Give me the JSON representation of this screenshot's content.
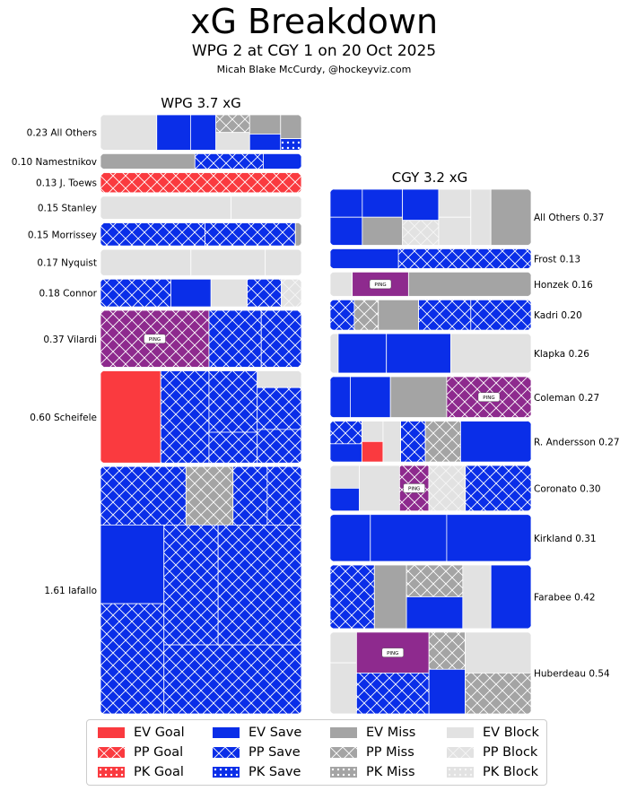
{
  "header": {
    "title": "xG Breakdown",
    "subtitle": "WPG 2 at CGY 1 on 20 Oct 2025",
    "credit": "Micah Blake McCurdy, @hockeyviz.com"
  },
  "colors": {
    "goal": "#fa3a3f",
    "save": "#0a2ee8",
    "miss": "#a4a4a4",
    "block": "#e2e2e2",
    "ping": "#8e2a8e",
    "pattern_line": "#ffffff"
  },
  "legend": {
    "items": [
      {
        "label": "EV Goal",
        "kind": "goal",
        "situation": "EV"
      },
      {
        "label": "PP Goal",
        "kind": "goal",
        "situation": "PP"
      },
      {
        "label": "PK Goal",
        "kind": "goal",
        "situation": "PK"
      },
      {
        "label": "EV Save",
        "kind": "save",
        "situation": "EV"
      },
      {
        "label": "PP Save",
        "kind": "save",
        "situation": "PP"
      },
      {
        "label": "PK Save",
        "kind": "save",
        "situation": "PK"
      },
      {
        "label": "EV Miss",
        "kind": "miss",
        "situation": "EV"
      },
      {
        "label": "PP Miss",
        "kind": "miss",
        "situation": "PP"
      },
      {
        "label": "PK Miss",
        "kind": "miss",
        "situation": "PK"
      },
      {
        "label": "EV Block",
        "kind": "block",
        "situation": "EV"
      },
      {
        "label": "PP Block",
        "kind": "block",
        "situation": "PP"
      },
      {
        "label": "PK Block",
        "kind": "block",
        "situation": "PK"
      }
    ]
  },
  "chart_data": {
    "type": "treemap",
    "ping_label": "PING",
    "teams": [
      {
        "title": "WPG 3.7 xG",
        "side": "left",
        "players": [
          {
            "label": "0.23 All Others",
            "xg": 0.23,
            "shots": [
              {
                "kind": "block",
                "sit": "EV",
                "w": 1.0
              },
              {
                "kind": "save",
                "sit": "EV",
                "w": 0.6
              },
              {
                "kind": "save",
                "sit": "EV",
                "w": 0.45
              },
              {
                "kind": "miss",
                "sit": "PP",
                "w": 0.3
              },
              {
                "kind": "block",
                "sit": "EV",
                "w": 0.3
              },
              {
                "kind": "miss",
                "sit": "EV",
                "w": 0.3
              },
              {
                "kind": "save",
                "sit": "EV",
                "w": 0.25
              },
              {
                "kind": "miss",
                "sit": "EV",
                "w": 0.25
              },
              {
                "kind": "save",
                "sit": "PK",
                "w": 0.12
              }
            ]
          },
          {
            "label": "0.10 Namestnikov",
            "xg": 0.1,
            "shots": [
              {
                "kind": "miss",
                "sit": "EV",
                "w": 0.47
              },
              {
                "kind": "save",
                "sit": "PP",
                "w": 0.34
              },
              {
                "kind": "save",
                "sit": "EV",
                "w": 0.19
              }
            ]
          },
          {
            "label": "0.13 J. Toews",
            "xg": 0.13,
            "shots": [
              {
                "kind": "goal",
                "sit": "PP",
                "w": 1.0
              }
            ]
          },
          {
            "label": "0.15 Stanley",
            "xg": 0.15,
            "shots": [
              {
                "kind": "block",
                "sit": "EV",
                "w": 0.65
              },
              {
                "kind": "block",
                "sit": "EV",
                "w": 0.35
              }
            ]
          },
          {
            "label": "0.15 Morrissey",
            "xg": 0.15,
            "shots": [
              {
                "kind": "save",
                "sit": "PP",
                "w": 0.52
              },
              {
                "kind": "save",
                "sit": "PP",
                "w": 0.45
              },
              {
                "kind": "miss",
                "sit": "EV",
                "w": 0.03
              }
            ]
          },
          {
            "label": "0.17 Nyquist",
            "xg": 0.17,
            "shots": [
              {
                "kind": "block",
                "sit": "EV",
                "w": 0.45
              },
              {
                "kind": "block",
                "sit": "EV",
                "w": 0.37
              },
              {
                "kind": "block",
                "sit": "EV",
                "w": 0.18
              }
            ]
          },
          {
            "label": "0.18 Connor",
            "xg": 0.18,
            "shots": [
              {
                "kind": "save",
                "sit": "PP",
                "w": 0.35
              },
              {
                "kind": "save",
                "sit": "EV",
                "w": 0.2
              },
              {
                "kind": "block",
                "sit": "EV",
                "w": 0.18
              },
              {
                "kind": "save",
                "sit": "PP",
                "w": 0.17
              },
              {
                "kind": "block",
                "sit": "PP",
                "w": 0.1
              }
            ]
          },
          {
            "label": "0.37 Vilardi",
            "xg": 0.37,
            "shots": [
              {
                "kind": "ping",
                "sit": "PP",
                "w": 0.54
              },
              {
                "kind": "save",
                "sit": "PP",
                "w": 0.26
              },
              {
                "kind": "save",
                "sit": "PP",
                "w": 0.2
              }
            ]
          },
          {
            "label": "0.60 Scheifele",
            "xg": 0.6,
            "shots": [
              {
                "kind": "goal",
                "sit": "EV",
                "w": 0.3
              },
              {
                "kind": "save",
                "sit": "PP",
                "w": 0.24
              },
              {
                "kind": "save",
                "sit": "PP",
                "w": 0.16
              },
              {
                "kind": "save",
                "sit": "PP",
                "w": 0.08
              },
              {
                "kind": "block",
                "sit": "EV",
                "w": 0.04
              },
              {
                "kind": "save",
                "sit": "PP",
                "w": 0.1
              },
              {
                "kind": "save",
                "sit": "PP",
                "w": 0.08
              }
            ]
          },
          {
            "label": "1.61 Iafallo",
            "xg": 1.61,
            "shots": [
              {
                "kind": "save",
                "sit": "PP",
                "w": 0.1
              },
              {
                "kind": "miss",
                "sit": "PP",
                "w": 0.055
              },
              {
                "kind": "save",
                "sit": "PP",
                "w": 0.04
              },
              {
                "kind": "save",
                "sit": "PP",
                "w": 0.04
              },
              {
                "kind": "save",
                "sit": "EV",
                "w": 0.1
              },
              {
                "kind": "save",
                "sit": "PP",
                "w": 0.14
              },
              {
                "kind": "save",
                "sit": "PP",
                "w": 0.13
              },
              {
                "kind": "save",
                "sit": "PP",
                "w": 0.2
              },
              {
                "kind": "save",
                "sit": "PP",
                "w": 0.19
              }
            ]
          }
        ]
      },
      {
        "title": "CGY 3.2 xG",
        "side": "right",
        "players": [
          {
            "label": "All Others 0.37",
            "xg": 0.37,
            "shots": [
              {
                "kind": "save",
                "sit": "EV",
                "w": 0.08
              },
              {
                "kind": "save",
                "sit": "EV",
                "w": 0.08
              },
              {
                "kind": "save",
                "sit": "EV",
                "w": 0.1
              },
              {
                "kind": "miss",
                "sit": "EV",
                "w": 0.1
              },
              {
                "kind": "save",
                "sit": "EV",
                "w": 0.1
              },
              {
                "kind": "block",
                "sit": "PP",
                "w": 0.08
              },
              {
                "kind": "block",
                "sit": "EV",
                "w": 0.08
              },
              {
                "kind": "block",
                "sit": "EV",
                "w": 0.08
              },
              {
                "kind": "block",
                "sit": "EV",
                "w": 0.1
              },
              {
                "kind": "miss",
                "sit": "EV",
                "w": 0.2
              }
            ]
          },
          {
            "label": "Frost 0.13",
            "xg": 0.13,
            "shots": [
              {
                "kind": "save",
                "sit": "EV",
                "w": 0.34
              },
              {
                "kind": "save",
                "sit": "PP",
                "w": 0.66
              }
            ]
          },
          {
            "label": "Honzek 0.16",
            "xg": 0.16,
            "shots": [
              {
                "kind": "block",
                "sit": "EV",
                "w": 0.11
              },
              {
                "kind": "ping",
                "sit": "EV",
                "w": 0.28
              },
              {
                "kind": "miss",
                "sit": "EV",
                "w": 0.61
              }
            ]
          },
          {
            "label": "Kadri 0.20",
            "xg": 0.2,
            "shots": [
              {
                "kind": "save",
                "sit": "PP",
                "w": 0.12
              },
              {
                "kind": "miss",
                "sit": "PP",
                "w": 0.12
              },
              {
                "kind": "miss",
                "sit": "EV",
                "w": 0.2
              },
              {
                "kind": "save",
                "sit": "PP",
                "w": 0.26
              },
              {
                "kind": "save",
                "sit": "PP",
                "w": 0.3
              }
            ]
          },
          {
            "label": "Klapka 0.26",
            "xg": 0.26,
            "shots": [
              {
                "kind": "block",
                "sit": "EV",
                "w": 0.04
              },
              {
                "kind": "save",
                "sit": "EV",
                "w": 0.24
              },
              {
                "kind": "save",
                "sit": "EV",
                "w": 0.32
              },
              {
                "kind": "block",
                "sit": "EV",
                "w": 0.4
              }
            ]
          },
          {
            "label": "Coleman 0.27",
            "xg": 0.27,
            "shots": [
              {
                "kind": "save",
                "sit": "EV",
                "w": 0.1
              },
              {
                "kind": "save",
                "sit": "EV",
                "w": 0.2
              },
              {
                "kind": "miss",
                "sit": "EV",
                "w": 0.28
              },
              {
                "kind": "ping",
                "sit": "PP",
                "w": 0.42
              }
            ]
          },
          {
            "label": "R. Andersson 0.27",
            "xg": 0.27,
            "shots": [
              {
                "kind": "save",
                "sit": "PP",
                "w": 0.1
              },
              {
                "kind": "save",
                "sit": "EV",
                "w": 0.08
              },
              {
                "kind": "block",
                "sit": "EV",
                "w": 0.06
              },
              {
                "kind": "goal",
                "sit": "EV",
                "w": 0.06
              },
              {
                "kind": "block",
                "sit": "EV",
                "w": 0.1
              },
              {
                "kind": "save",
                "sit": "PP",
                "w": 0.14
              },
              {
                "kind": "miss",
                "sit": "PP",
                "w": 0.2
              },
              {
                "kind": "save",
                "sit": "EV",
                "w": 0.4
              }
            ]
          },
          {
            "label": "Coronato 0.30",
            "xg": 0.3,
            "shots": [
              {
                "kind": "block",
                "sit": "EV",
                "w": 0.08
              },
              {
                "kind": "save",
                "sit": "EV",
                "w": 0.08
              },
              {
                "kind": "block",
                "sit": "EV",
                "w": 0.22
              },
              {
                "kind": "ping",
                "sit": "PP",
                "w": 0.16
              },
              {
                "kind": "block",
                "sit": "PP",
                "w": 0.2
              },
              {
                "kind": "save",
                "sit": "PP",
                "w": 0.36
              }
            ]
          },
          {
            "label": "Kirkland 0.31",
            "xg": 0.31,
            "shots": [
              {
                "kind": "save",
                "sit": "EV",
                "w": 0.2
              },
              {
                "kind": "save",
                "sit": "EV",
                "w": 0.38
              },
              {
                "kind": "save",
                "sit": "EV",
                "w": 0.42
              }
            ]
          },
          {
            "label": "Farabee 0.42",
            "xg": 0.42,
            "shots": [
              {
                "kind": "save",
                "sit": "PP",
                "w": 0.22
              },
              {
                "kind": "miss",
                "sit": "EV",
                "w": 0.16
              },
              {
                "kind": "miss",
                "sit": "PP",
                "w": 0.14
              },
              {
                "kind": "save",
                "sit": "EV",
                "w": 0.14
              },
              {
                "kind": "block",
                "sit": "EV",
                "w": 0.14
              },
              {
                "kind": "save",
                "sit": "EV",
                "w": 0.2
              }
            ]
          },
          {
            "label": "Huberdeau 0.54",
            "xg": 0.54,
            "shots": [
              {
                "kind": "block",
                "sit": "EV",
                "w": 0.06
              },
              {
                "kind": "block",
                "sit": "EV",
                "w": 0.1
              },
              {
                "kind": "ping",
                "sit": "EV",
                "w": 0.22
              },
              {
                "kind": "save",
                "sit": "PP",
                "w": 0.22
              },
              {
                "kind": "miss",
                "sit": "PP",
                "w": 0.1
              },
              {
                "kind": "save",
                "sit": "EV",
                "w": 0.12
              },
              {
                "kind": "block",
                "sit": "EV",
                "w": 0.2
              },
              {
                "kind": "miss",
                "sit": "PP",
                "w": 0.2
              }
            ]
          }
        ]
      }
    ]
  }
}
